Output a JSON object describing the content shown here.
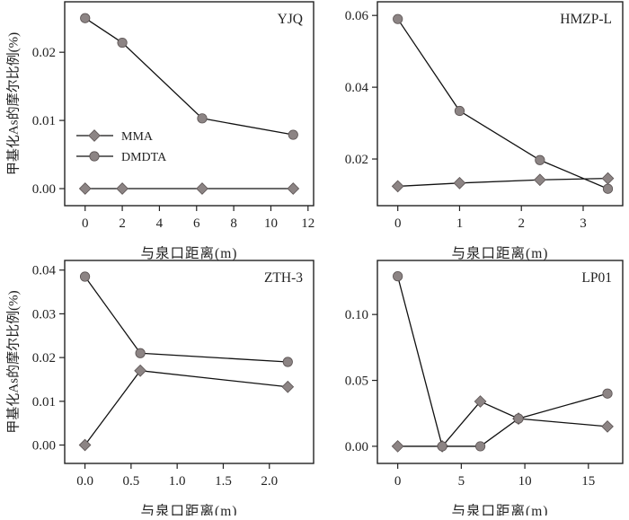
{
  "chart_data": [
    {
      "type": "line",
      "title": "YJQ",
      "xlabel": "与泉口距离(m)",
      "ylabel": "甲基化As的摩尔比例(%)",
      "xlim": [
        -1.1,
        12.3
      ],
      "ylim": [
        -0.0025,
        0.0274
      ],
      "xticks": [
        0,
        2,
        4,
        6,
        8,
        10,
        12
      ],
      "xtick_labels": [
        "0",
        "2",
        "4",
        "6",
        "8",
        "10",
        "12"
      ],
      "yticks": [
        0,
        0.01,
        0.02
      ],
      "ytick_labels": [
        "0.00",
        "0.01",
        "0.02"
      ],
      "legend": {
        "position": "center-left",
        "entries": [
          "MMA",
          "DMDTA"
        ]
      },
      "series": [
        {
          "name": "MMA",
          "marker": "diamond",
          "x": [
            0,
            2,
            6.3,
            11.2
          ],
          "y": [
            0,
            0,
            0,
            0
          ]
        },
        {
          "name": "DMDTA",
          "marker": "circle",
          "x": [
            0,
            2,
            6.3,
            11.2
          ],
          "y": [
            0.025,
            0.0214,
            0.0103,
            0.0079
          ]
        }
      ]
    },
    {
      "type": "line",
      "title": "HMZP-L",
      "xlabel": "与泉口距离(m)",
      "ylabel": "",
      "xlim": [
        -0.33,
        3.64
      ],
      "ylim": [
        0.007,
        0.0638
      ],
      "xticks": [
        0,
        1,
        2,
        3
      ],
      "xtick_labels": [
        "0",
        "1",
        "2",
        "3"
      ],
      "yticks": [
        0.02,
        0.04,
        0.06
      ],
      "ytick_labels": [
        "0.02",
        "0.04",
        "0.06"
      ],
      "series": [
        {
          "name": "MMA",
          "marker": "diamond",
          "x": [
            0,
            1,
            2.3,
            3.4
          ],
          "y": [
            0.0124,
            0.0133,
            0.0142,
            0.0146
          ]
        },
        {
          "name": "DMDTA",
          "marker": "circle",
          "x": [
            0,
            1,
            2.3,
            3.4
          ],
          "y": [
            0.059,
            0.0334,
            0.0197,
            0.0117
          ]
        }
      ]
    },
    {
      "type": "line",
      "title": "ZTH-3",
      "xlabel": "与泉口距离(m)",
      "ylabel": "甲基化As的摩尔比例(%)",
      "xlim": [
        -0.22,
        2.48
      ],
      "ylim": [
        -0.0042,
        0.0422
      ],
      "xticks": [
        0,
        0.5,
        1,
        1.5,
        2
      ],
      "xtick_labels": [
        "0.0",
        "0.5",
        "1.0",
        "1.5",
        "2.0"
      ],
      "yticks": [
        0,
        0.01,
        0.02,
        0.03,
        0.04
      ],
      "ytick_labels": [
        "0.00",
        "0.01",
        "0.02",
        "0.03",
        "0.04"
      ],
      "series": [
        {
          "name": "MMA",
          "marker": "diamond",
          "x": [
            0,
            0.6,
            2.2
          ],
          "y": [
            0,
            0.017,
            0.0133
          ]
        },
        {
          "name": "DMDTA",
          "marker": "circle",
          "x": [
            0,
            0.6,
            2.2
          ],
          "y": [
            0.0385,
            0.021,
            0.019
          ]
        }
      ]
    },
    {
      "type": "line",
      "title": "LP01",
      "xlabel": "与泉口距离(m)",
      "ylabel": "",
      "xlim": [
        -1.6,
        17.7
      ],
      "ylim": [
        -0.013,
        0.141
      ],
      "xticks": [
        0,
        5,
        10,
        15
      ],
      "xtick_labels": [
        "0",
        "5",
        "10",
        "15"
      ],
      "yticks": [
        0,
        0.05,
        0.1
      ],
      "ytick_labels": [
        "0.00",
        "0.05",
        "0.10"
      ],
      "series": [
        {
          "name": "MMA",
          "marker": "diamond",
          "x": [
            0,
            3.5,
            6.5,
            9.5,
            16.5
          ],
          "y": [
            0,
            0,
            0.034,
            0.021,
            0.015
          ]
        },
        {
          "name": "DMDTA",
          "marker": "circle",
          "x": [
            0,
            3.5,
            6.5,
            9.5,
            16.5
          ],
          "y": [
            0.129,
            0,
            0,
            0.021,
            0.04
          ]
        }
      ]
    }
  ],
  "colors": {
    "marker_fill": "#8c8484",
    "marker_stroke": "#5a5252",
    "line": "#111111",
    "axis": "#222222"
  }
}
